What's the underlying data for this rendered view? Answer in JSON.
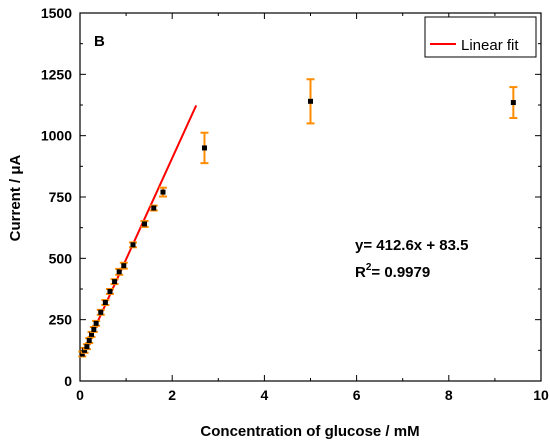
{
  "chart_data": {
    "type": "scatter",
    "panel_label": "B",
    "xlabel": "Concentration of glucose / mM",
    "ylabel": "Current / μA",
    "xlim": [
      0,
      10
    ],
    "ylim": [
      0,
      1500
    ],
    "x_ticks": [
      "0",
      "2",
      "4",
      "6",
      "8",
      "10"
    ],
    "y_ticks": [
      "0",
      "250",
      "500",
      "750",
      "1000",
      "1250",
      "1500"
    ],
    "grid": false,
    "legend": {
      "position": "top-right",
      "entries": [
        "Linear fit"
      ]
    },
    "fit": {
      "slope": 412.6,
      "intercept": 83.5,
      "x_range": [
        0.05,
        2.52
      ],
      "color": "#ff0000"
    },
    "annotation": {
      "line1": "y= 412.6x + 83.5",
      "r_prefix": "R",
      "r_sup": "2",
      "r_rest": "= 0.9979"
    },
    "errorbar_color": "#ff8c00",
    "point_color": "#000000",
    "points": [
      {
        "x": 0.05,
        "y": 110,
        "err": 10
      },
      {
        "x": 0.1,
        "y": 125,
        "err": 10
      },
      {
        "x": 0.15,
        "y": 140,
        "err": 10
      },
      {
        "x": 0.2,
        "y": 165,
        "err": 10
      },
      {
        "x": 0.25,
        "y": 190,
        "err": 10
      },
      {
        "x": 0.3,
        "y": 210,
        "err": 10
      },
      {
        "x": 0.35,
        "y": 235,
        "err": 10
      },
      {
        "x": 0.45,
        "y": 280,
        "err": 10
      },
      {
        "x": 0.55,
        "y": 320,
        "err": 10
      },
      {
        "x": 0.65,
        "y": 365,
        "err": 10
      },
      {
        "x": 0.75,
        "y": 405,
        "err": 10
      },
      {
        "x": 0.85,
        "y": 445,
        "err": 12
      },
      {
        "x": 0.95,
        "y": 470,
        "err": 12
      },
      {
        "x": 1.15,
        "y": 555,
        "err": 10
      },
      {
        "x": 1.4,
        "y": 640,
        "err": 12
      },
      {
        "x": 1.6,
        "y": 705,
        "err": 10
      },
      {
        "x": 1.8,
        "y": 770,
        "err": 18
      },
      {
        "x": 2.7,
        "y": 950,
        "err": 62
      },
      {
        "x": 5.0,
        "y": 1140,
        "err": 90
      },
      {
        "x": 9.4,
        "y": 1135,
        "err": 63
      }
    ]
  }
}
